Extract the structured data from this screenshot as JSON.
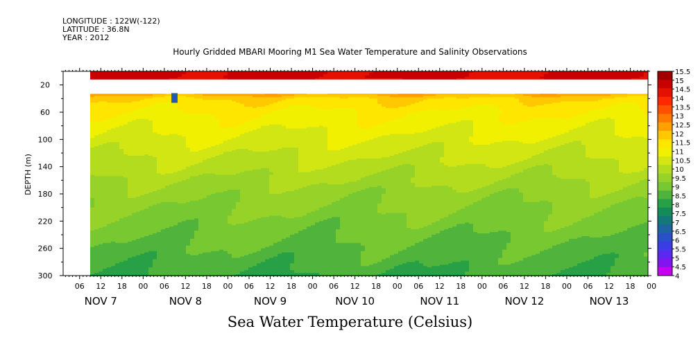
{
  "header": {
    "longitude": "LONGITUDE : 122W(-122)",
    "latitude": "LATITUDE : 36.8N",
    "year": "YEAR : 2012"
  },
  "chart_data": {
    "type": "heatmap",
    "title": "Hourly Gridded MBARI Mooring M1 Sea Water Temperature and Salinity Observations",
    "xlabel": "Sea Water Temperature (Celsius)",
    "ylabel": "DEPTH (m)",
    "ylim": [
      300,
      0
    ],
    "yticks": [
      20,
      60,
      100,
      140,
      180,
      220,
      260,
      300
    ],
    "hour_ticks": [
      "06",
      "12",
      "18",
      "00",
      "06",
      "12",
      "18",
      "00",
      "06",
      "12",
      "18",
      "00",
      "06",
      "12",
      "18",
      "00",
      "06",
      "12",
      "18",
      "00",
      "06",
      "12",
      "18",
      "00",
      "06",
      "12",
      "18",
      "00"
    ],
    "day_labels": [
      "NOV 7",
      "NOV 8",
      "NOV 9",
      "NOV 10",
      "NOV 11",
      "NOV 12",
      "NOV 13"
    ],
    "data_start": "NOV 7 09:00",
    "data_end": "NOV 13 23:00",
    "colorbar_levels": [
      "15.5",
      "15",
      "14.5",
      "14",
      "13.5",
      "13",
      "12.5",
      "12",
      "11.5",
      "11",
      "10.5",
      "10",
      "9.5",
      "9",
      "8.5",
      "8",
      "7.5",
      "7",
      "6.5",
      "6",
      "5.5",
      "5",
      "4.5",
      "4"
    ],
    "colorbar_colors": [
      "#a00000",
      "#c80000",
      "#e61000",
      "#ff2800",
      "#ff5000",
      "#ff7800",
      "#ffa000",
      "#ffc800",
      "#ffe600",
      "#f0f000",
      "#d2e614",
      "#b4dc1e",
      "#96d228",
      "#78c832",
      "#50b43c",
      "#28a046",
      "#148c5a",
      "#147878",
      "#1e64a0",
      "#2850c8",
      "#3c3ce6",
      "#5a28f0",
      "#8214f0",
      "#c800f0"
    ],
    "depth_profile": [
      {
        "depth": 10,
        "temp": 14.6
      },
      {
        "depth": 40,
        "temp": 11.5
      },
      {
        "depth": 60,
        "temp": 11.0
      },
      {
        "depth": 80,
        "temp": 10.7
      },
      {
        "depth": 100,
        "temp": 10.4
      },
      {
        "depth": 120,
        "temp": 10.1
      },
      {
        "depth": 140,
        "temp": 9.8
      },
      {
        "depth": 160,
        "temp": 9.5
      },
      {
        "depth": 180,
        "temp": 9.2
      },
      {
        "depth": 200,
        "temp": 9.0
      },
      {
        "depth": 220,
        "temp": 8.8
      },
      {
        "depth": 240,
        "temp": 8.6
      },
      {
        "depth": 260,
        "temp": 8.4
      },
      {
        "depth": 280,
        "temp": 8.2
      },
      {
        "depth": 300,
        "temp": 8.0
      }
    ],
    "missing_depth_range": [
      20,
      40
    ]
  }
}
